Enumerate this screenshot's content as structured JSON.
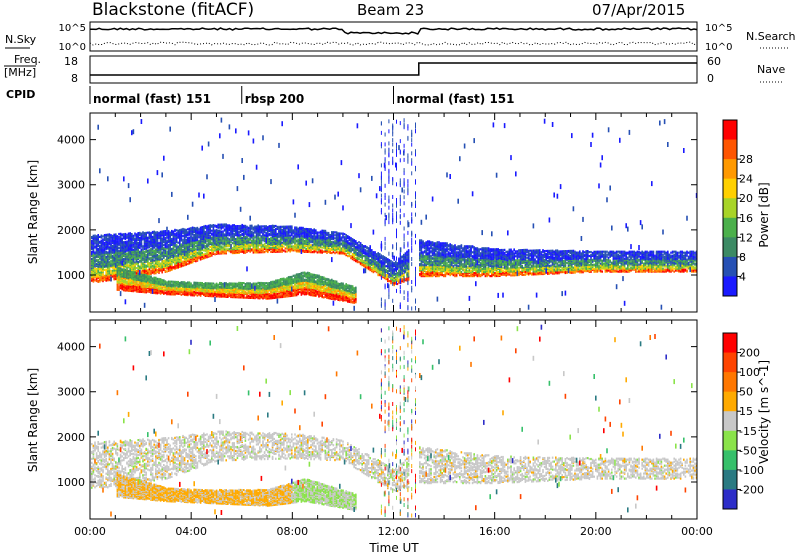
{
  "header": {
    "radar": "Blackstone (fitACF)",
    "beam": "Beam 23",
    "date": "07/Apr/2015"
  },
  "top_panels": {
    "nsky": {
      "label": "N.Sky",
      "left_ticks": [
        "10^5",
        "10^0"
      ],
      "right_label": "N.Search",
      "right_ticks": [
        "10^5",
        "10^0"
      ]
    },
    "freq": {
      "label_line1": "Freq.",
      "label_line2": "[MHz]",
      "left_ticks": [
        "18",
        "8"
      ],
      "right_label": "Nave",
      "right_ticks": [
        "60",
        "0"
      ],
      "freq_step_time_hours": 13.0
    },
    "cpid": {
      "label": "CPID",
      "segments": [
        {
          "label": "normal (fast) 151",
          "start_hours": 0.0
        },
        {
          "label": "rbsp 200",
          "start_hours": 6.0
        },
        {
          "label": "normal (fast) 151",
          "start_hours": 12.0
        }
      ]
    }
  },
  "chart_data": [
    {
      "type": "heatmap",
      "title": "Power",
      "ylabel": "Slant Range [km]",
      "ylim": [
        180,
        4590
      ],
      "yticks": [
        1000,
        2000,
        3000,
        4000
      ],
      "xlim_hours": [
        0,
        24
      ],
      "colorbar": {
        "label": "Power [dB]",
        "ticks": [
          "4",
          "8",
          "12",
          "16",
          "20",
          "24",
          "28"
        ],
        "colors": [
          "#1a1aff",
          "#2650b4",
          "#3c8a64",
          "#4bb04b",
          "#a8d428",
          "#ffd000",
          "#ff9900",
          "#ff5500",
          "#ff0000"
        ]
      },
      "bands": [
        {
          "description": "main backscatter band",
          "time_hours": [
            0,
            3,
            5,
            8,
            10,
            12,
            13,
            16,
            20,
            24
          ],
          "range_km_low": [
            850,
            1100,
            1500,
            1550,
            1500,
            800,
            1000,
            1000,
            1100,
            1100
          ],
          "range_km_high": [
            1900,
            2000,
            2150,
            2100,
            1950,
            1300,
            1800,
            1600,
            1550,
            1550
          ]
        },
        {
          "description": "lower high-power band",
          "time_hours": [
            1,
            3,
            5,
            7,
            8.5,
            10.5
          ],
          "range_km_low": [
            700,
            600,
            550,
            500,
            600,
            400
          ],
          "range_km_high": [
            1200,
            900,
            850,
            850,
            1100,
            750
          ]
        }
      ]
    },
    {
      "type": "heatmap",
      "title": "Velocity",
      "ylabel": "Slant Range [km]",
      "ylim": [
        180,
        4590
      ],
      "yticks": [
        1000,
        2000,
        3000,
        4000
      ],
      "xlim_hours": [
        0,
        24
      ],
      "xticks": [
        "00:00",
        "04:00",
        "08:00",
        "12:00",
        "16:00",
        "20:00",
        "00:00"
      ],
      "xlabel": "Time UT",
      "colorbar": {
        "label": "Velocity [m s^-1]",
        "ticks": [
          "200",
          "100",
          "50",
          "15",
          "-15",
          "-50",
          "-100",
          "-200"
        ],
        "colors": [
          "#2d2dc8",
          "#2a7a82",
          "#36c06a",
          "#8ae34a",
          "#c8c8c8",
          "#ffaa00",
          "#ff7700",
          "#ff4400",
          "#ff0000"
        ]
      }
    }
  ]
}
